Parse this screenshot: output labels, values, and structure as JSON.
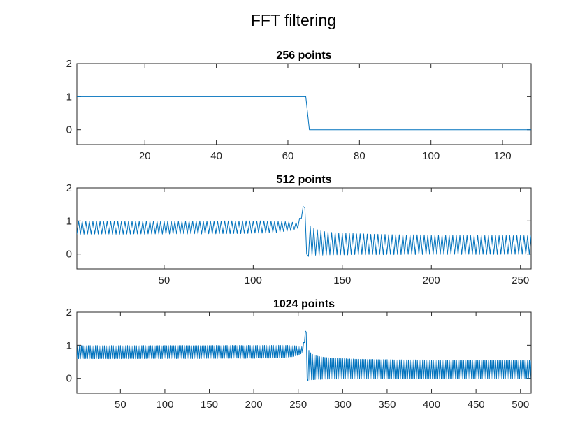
{
  "figure": {
    "title": "FFT filtering"
  },
  "colors": {
    "series": "#0072BD",
    "axis": "#262626",
    "background": "#ffffff"
  },
  "chart_data": [
    {
      "type": "line",
      "title": "256 points",
      "xlabel": "",
      "ylabel": "",
      "xlim": [
        1,
        128
      ],
      "ylim": [
        -0.45,
        2
      ],
      "xticks": [
        20,
        40,
        60,
        80,
        100,
        120
      ],
      "yticks": [
        0,
        1,
        2
      ],
      "grid": false,
      "signal": {
        "n": 128,
        "cutoff": 65,
        "ripple_amp": 0,
        "edge_peak": 0,
        "tail_end_amp": 0,
        "seed": 1
      },
      "series": [
        {
          "values_description": "",
          "x_start": 1,
          "x_end": 128
        }
      ]
    },
    {
      "type": "line",
      "title": "512 points",
      "xlabel": "",
      "ylabel": "",
      "xlim": [
        1,
        256
      ],
      "ylim": [
        -0.45,
        2
      ],
      "xticks": [
        50,
        100,
        150,
        200,
        250
      ],
      "yticks": [
        0,
        1,
        2
      ],
      "grid": false,
      "signal": {
        "n": 256,
        "cutoff": 129,
        "ripple_amp": 0.22,
        "edge_peak": 2.0,
        "tail_end_amp": 0.25,
        "seed": 2
      },
      "series": [
        {
          "values_description": "",
          "x_start": 1,
          "x_end": 256
        }
      ]
    },
    {
      "type": "line",
      "title": "1024 points",
      "xlabel": "",
      "ylabel": "",
      "xlim": [
        1,
        512
      ],
      "ylim": [
        -0.45,
        2
      ],
      "xticks": [
        50,
        100,
        150,
        200,
        250,
        300,
        350,
        400,
        450,
        500
      ],
      "yticks": [
        0,
        1,
        2
      ],
      "grid": false,
      "signal": {
        "n": 512,
        "cutoff": 259,
        "ripple_amp": 0.22,
        "edge_peak": 2.0,
        "tail_end_amp": 0.25,
        "seed": 3
      },
      "series": [
        {
          "values_description": "",
          "x_start": 1,
          "x_end": 512
        }
      ]
    }
  ]
}
